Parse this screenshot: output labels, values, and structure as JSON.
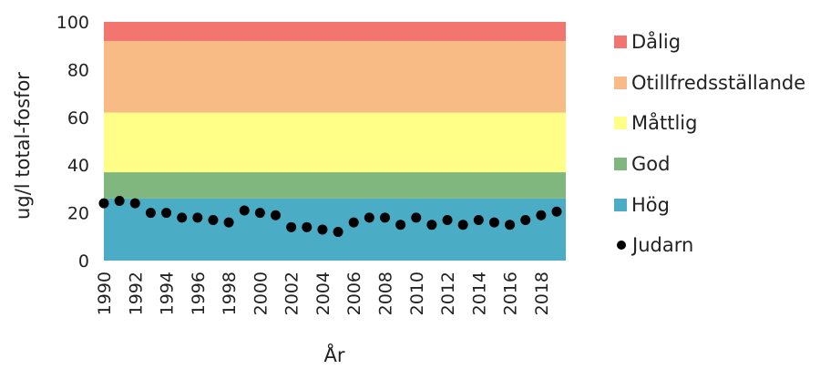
{
  "chart_data": {
    "type": "scatter",
    "xlabel": "År",
    "ylabel": "ug/l total-fosfor",
    "ylim": [
      0,
      100
    ],
    "yticks": [
      "0",
      "20",
      "40",
      "60",
      "80",
      "100"
    ],
    "xlim": [
      1990,
      2019
    ],
    "xticks": [
      "1990",
      "1992",
      "1994",
      "1996",
      "1998",
      "2000",
      "2002",
      "2004",
      "2006",
      "2008",
      "2010",
      "2012",
      "2014",
      "2016",
      "2018"
    ],
    "grid": false,
    "legend_position": "right",
    "bands": [
      {
        "name": "Hög",
        "from": 0,
        "to": 26,
        "color": "#4bacc6"
      },
      {
        "name": "God",
        "from": 26,
        "to": 37,
        "color": "#7fb77e"
      },
      {
        "name": "Måttlig",
        "from": 37,
        "to": 62,
        "color": "#ffff88"
      },
      {
        "name": "Otillfredsställande",
        "from": 62,
        "to": 92,
        "color": "#f9bb85"
      },
      {
        "name": "Dålig",
        "from": 92,
        "to": 100,
        "color": "#f27570"
      }
    ],
    "series": [
      {
        "name": "Judarn",
        "color": "#000000",
        "x": [
          1990,
          1991,
          1992,
          1993,
          1994,
          1995,
          1996,
          1997,
          1998,
          1999,
          2000,
          2001,
          2002,
          2003,
          2004,
          2005,
          2006,
          2007,
          2008,
          2009,
          2010,
          2011,
          2012,
          2013,
          2014,
          2015,
          2016,
          2017,
          2018,
          2019
        ],
        "y": [
          24,
          25,
          24,
          20,
          20,
          18,
          18,
          17,
          16,
          21,
          20,
          19,
          14,
          14,
          13,
          12,
          16,
          18,
          18,
          15,
          18,
          15,
          17,
          15,
          17,
          16,
          15,
          17,
          19,
          20.5
        ]
      }
    ]
  },
  "legend": [
    {
      "label": "Dålig",
      "color": "#f27570",
      "marker": "square"
    },
    {
      "label": "Otillfredsställande",
      "color": "#f9bb85",
      "marker": "square"
    },
    {
      "label": "Måttlig",
      "color": "#ffff88",
      "marker": "square"
    },
    {
      "label": "God",
      "color": "#7fb77e",
      "marker": "square"
    },
    {
      "label": "Hög",
      "color": "#4bacc6",
      "marker": "square"
    },
    {
      "label": "Judarn",
      "color": "#000000",
      "marker": "circle"
    }
  ]
}
